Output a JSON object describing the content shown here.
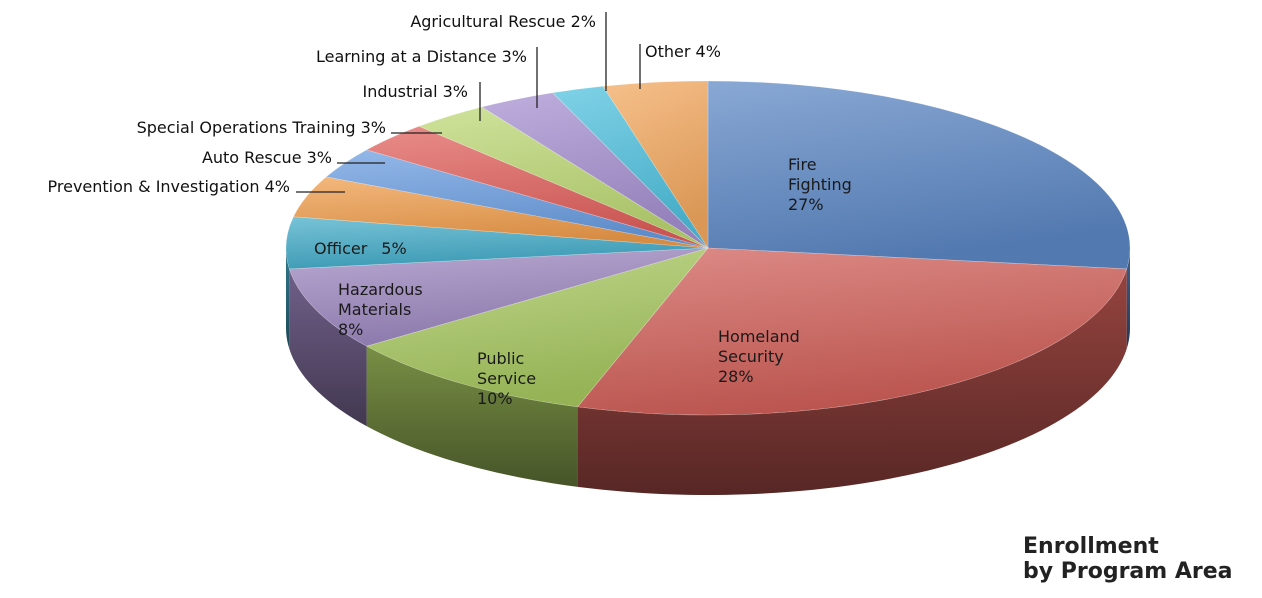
{
  "chart_data": {
    "type": "pie",
    "title": "Enrollment by Program Area",
    "title_lines": [
      "Enrollment",
      "by Program Area"
    ],
    "slices": [
      {
        "label": "Fire Fighting",
        "label_lines": [
          "Fire",
          "Fighting"
        ],
        "value": 27,
        "display": "27%",
        "color": "#5b86c3"
      },
      {
        "label": "Homeland Security",
        "label_lines": [
          "Homeland",
          "Security"
        ],
        "value": 28,
        "display": "28%",
        "color": "#d05e58"
      },
      {
        "label": "Public Service",
        "label_lines": [
          "Public",
          "Service"
        ],
        "value": 10,
        "display": "10%",
        "color": "#a7c760"
      },
      {
        "label": "Hazardous Materials",
        "label_lines": [
          "Hazardous",
          "Materials"
        ],
        "value": 8,
        "display": "8%",
        "color": "#9c86bf"
      },
      {
        "label": "Officer",
        "label_lines": [
          "Officer"
        ],
        "value": 5,
        "display": "5%",
        "color": "#43abc8"
      },
      {
        "label": "Prevention & Investigation",
        "label_lines": [
          "Prevention & Investigation 4%"
        ],
        "value": 4,
        "display": "4%",
        "color": "#ef9c4a"
      },
      {
        "label": "Auto Rescue",
        "label_lines": [
          "Auto Rescue 3%"
        ],
        "value": 3,
        "display": "3%",
        "color": "#6a9de0"
      },
      {
        "label": "Special Operations Training",
        "label_lines": [
          "Special Operations Training 3%"
        ],
        "value": 3,
        "display": "3%",
        "color": "#e0605c"
      },
      {
        "label": "Industrial",
        "label_lines": [
          "Industrial 3%"
        ],
        "value": 3,
        "display": "3%",
        "color": "#bcd774"
      },
      {
        "label": "Learning at a Distance",
        "label_lines": [
          "Learning at a Distance 3%"
        ],
        "value": 3,
        "display": "3%",
        "color": "#a58fd0"
      },
      {
        "label": "Agricultural Rescue",
        "label_lines": [
          "Agricultural Rescue 2%"
        ],
        "value": 2,
        "display": "2%",
        "color": "#4fc0de"
      },
      {
        "label": "Other",
        "label_lines": [
          "Other 4%"
        ],
        "value": 4,
        "display": "4%",
        "color": "#f2a85e"
      }
    ],
    "style": "3d",
    "start": "top, clockwise",
    "legend": "none"
  }
}
